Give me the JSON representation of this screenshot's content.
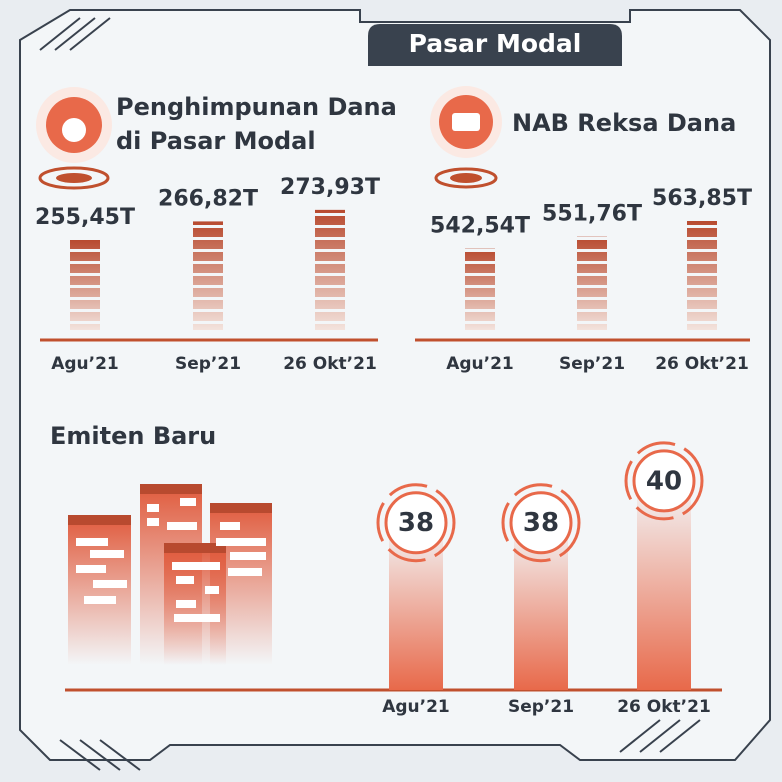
{
  "header": {
    "title": "Pasar Modal"
  },
  "chart_data": [
    {
      "type": "bar",
      "title": [
        "Penghimpunan Dana",
        "di Pasar Modal"
      ],
      "categories": [
        "Agu’21",
        "Sep’21",
        "26 Okt’21"
      ],
      "values": [
        255.45,
        266.82,
        273.93
      ],
      "value_labels": [
        "255,45T",
        "266,82T",
        "273,93T"
      ],
      "ylim": [
        200,
        280
      ],
      "color": "#b84a2f"
    },
    {
      "type": "bar",
      "title": [
        "NAB Reksa Dana"
      ],
      "categories": [
        "Agu’21",
        "Sep’21",
        "26 Okt’21"
      ],
      "values": [
        542.54,
        551.76,
        563.85
      ],
      "value_labels": [
        "542,54T",
        "551,76T",
        "563,85T"
      ],
      "ylim": [
        480,
        580
      ],
      "color": "#b84a2f"
    },
    {
      "type": "bar",
      "title": [
        "Emiten Baru"
      ],
      "categories": [
        "Agu’21",
        "Sep’21",
        "26 Okt’21"
      ],
      "values": [
        38,
        38,
        40
      ],
      "ylim": [
        30,
        41
      ],
      "color": "#e8694a"
    }
  ]
}
